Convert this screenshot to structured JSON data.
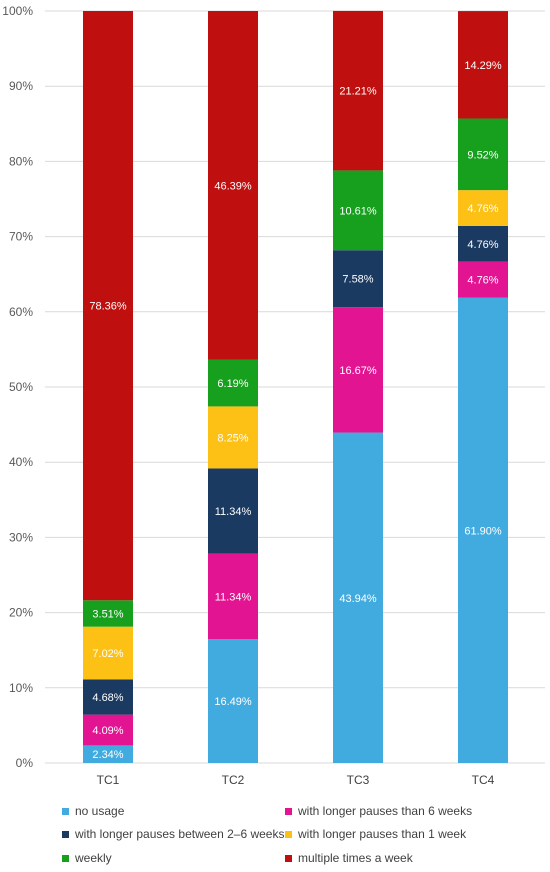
{
  "chart_data": {
    "type": "bar",
    "stacked": true,
    "categories": [
      "TC1",
      "TC2",
      "TC3",
      "TC4"
    ],
    "ylim": [
      0,
      100
    ],
    "yticks": [
      "0%",
      "10%",
      "20%",
      "30%",
      "40%",
      "50%",
      "60%",
      "70%",
      "80%",
      "90%",
      "100%"
    ],
    "grid": true,
    "legend_position": "bottom",
    "series": [
      {
        "name": "no usage",
        "color": "#41ABE0",
        "values": [
          2.34,
          16.49,
          43.94,
          61.9
        ],
        "labels": [
          "2.34%",
          "16.49%",
          "43.94%",
          "61.90%"
        ]
      },
      {
        "name": "with longer pauses than 6 weeks",
        "color": "#E31492",
        "values": [
          4.09,
          11.34,
          16.67,
          4.76
        ],
        "labels": [
          "4.09%",
          "11.34%",
          "16.67%",
          "4.76%"
        ]
      },
      {
        "name": "with longer pauses between 2–6 weeks",
        "color": "#1B3A61",
        "values": [
          4.68,
          11.34,
          7.58,
          4.76
        ],
        "labels": [
          "4.68%",
          "11.34%",
          "7.58%",
          "4.76%"
        ]
      },
      {
        "name": "with longer pauses than 1 week",
        "color": "#FDC015",
        "values": [
          7.02,
          8.25,
          0,
          4.76
        ],
        "labels": [
          "7.02%",
          "8.25%",
          "",
          "4.76%"
        ]
      },
      {
        "name": "weekly",
        "color": "#17A01E",
        "values": [
          3.51,
          6.19,
          10.61,
          9.52
        ],
        "labels": [
          "3.51%",
          "6.19%",
          "10.61%",
          "9.52%"
        ]
      },
      {
        "name": "multiple times a week",
        "color": "#C00F0F",
        "values": [
          78.36,
          46.39,
          21.21,
          14.29
        ],
        "labels": [
          "78.36%",
          "46.39%",
          "21.21%",
          "14.29%"
        ]
      }
    ]
  }
}
